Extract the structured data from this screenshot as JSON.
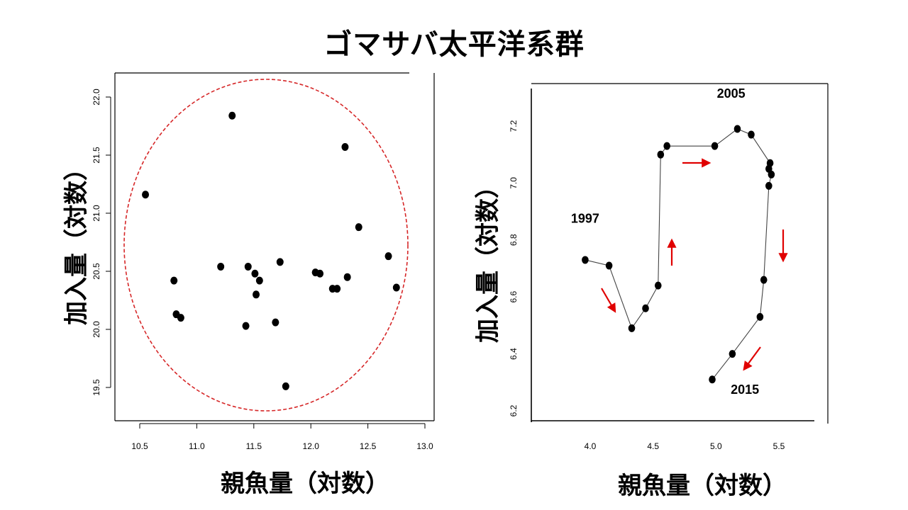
{
  "title": "ゴマサバ太平洋系群",
  "chart_data": [
    {
      "type": "scatter",
      "xlabel": "親魚量（対数）",
      "ylabel": "加入量（対数）",
      "xlim": [
        10.3,
        13.0
      ],
      "ylim": [
        19.3,
        22.1
      ],
      "xticks": [
        "10.5",
        "11.0",
        "11.5",
        "12.0",
        "12.5",
        "13.0"
      ],
      "yticks": [
        "19.5",
        "20.0",
        "20.5",
        "21.0",
        "21.5",
        "22.0"
      ],
      "points": [
        {
          "x": 10.55,
          "y": 21.16
        },
        {
          "x": 11.31,
          "y": 21.84
        },
        {
          "x": 12.3,
          "y": 21.57
        },
        {
          "x": 12.42,
          "y": 20.88
        },
        {
          "x": 12.68,
          "y": 20.63
        },
        {
          "x": 12.75,
          "y": 20.36
        },
        {
          "x": 10.8,
          "y": 20.42
        },
        {
          "x": 10.82,
          "y": 20.13
        },
        {
          "x": 10.86,
          "y": 20.1
        },
        {
          "x": 11.21,
          "y": 20.54
        },
        {
          "x": 11.45,
          "y": 20.54
        },
        {
          "x": 11.51,
          "y": 20.48
        },
        {
          "x": 11.55,
          "y": 20.42
        },
        {
          "x": 11.52,
          "y": 20.3
        },
        {
          "x": 11.73,
          "y": 20.58
        },
        {
          "x": 11.43,
          "y": 20.03
        },
        {
          "x": 11.69,
          "y": 20.06
        },
        {
          "x": 11.78,
          "y": 19.51
        },
        {
          "x": 12.04,
          "y": 20.49
        },
        {
          "x": 12.08,
          "y": 20.48
        },
        {
          "x": 12.19,
          "y": 20.35
        },
        {
          "x": 12.23,
          "y": 20.35
        },
        {
          "x": 12.32,
          "y": 20.45
        }
      ],
      "annotation": "dashed red ellipse enclosing all points",
      "ellipse_color": "#d62728"
    },
    {
      "type": "line",
      "xlabel": "親魚量（対数）",
      "ylabel": "加入量（対数）",
      "xlim": [
        3.5,
        5.8
      ],
      "ylim": [
        6.18,
        7.34
      ],
      "xticks": [
        "4.0",
        "4.5",
        "5.0",
        "5.5"
      ],
      "yticks": [
        "6.2",
        "6.4",
        "6.6",
        "6.8",
        "7.0",
        "7.2"
      ],
      "points": [
        {
          "x": 3.96,
          "y": 6.73
        },
        {
          "x": 4.15,
          "y": 6.71
        },
        {
          "x": 4.33,
          "y": 6.49
        },
        {
          "x": 4.44,
          "y": 6.56
        },
        {
          "x": 4.54,
          "y": 6.64
        },
        {
          "x": 4.56,
          "y": 7.1
        },
        {
          "x": 4.61,
          "y": 7.13
        },
        {
          "x": 4.99,
          "y": 7.13
        },
        {
          "x": 5.17,
          "y": 7.19
        },
        {
          "x": 5.28,
          "y": 7.17
        },
        {
          "x": 5.43,
          "y": 7.07
        },
        {
          "x": 5.42,
          "y": 7.05
        },
        {
          "x": 5.44,
          "y": 7.03
        },
        {
          "x": 5.42,
          "y": 6.99
        },
        {
          "x": 5.38,
          "y": 6.66
        },
        {
          "x": 5.35,
          "y": 6.53
        },
        {
          "x": 5.13,
          "y": 6.4
        },
        {
          "x": 4.97,
          "y": 6.31
        }
      ],
      "labels": [
        {
          "text": "1997",
          "x": 3.96,
          "y": 6.86
        },
        {
          "text": "2005",
          "x": 5.12,
          "y": 7.3
        },
        {
          "text": "2015",
          "x": 5.23,
          "y": 6.26
        }
      ],
      "arrow_color": "#e00000"
    }
  ]
}
